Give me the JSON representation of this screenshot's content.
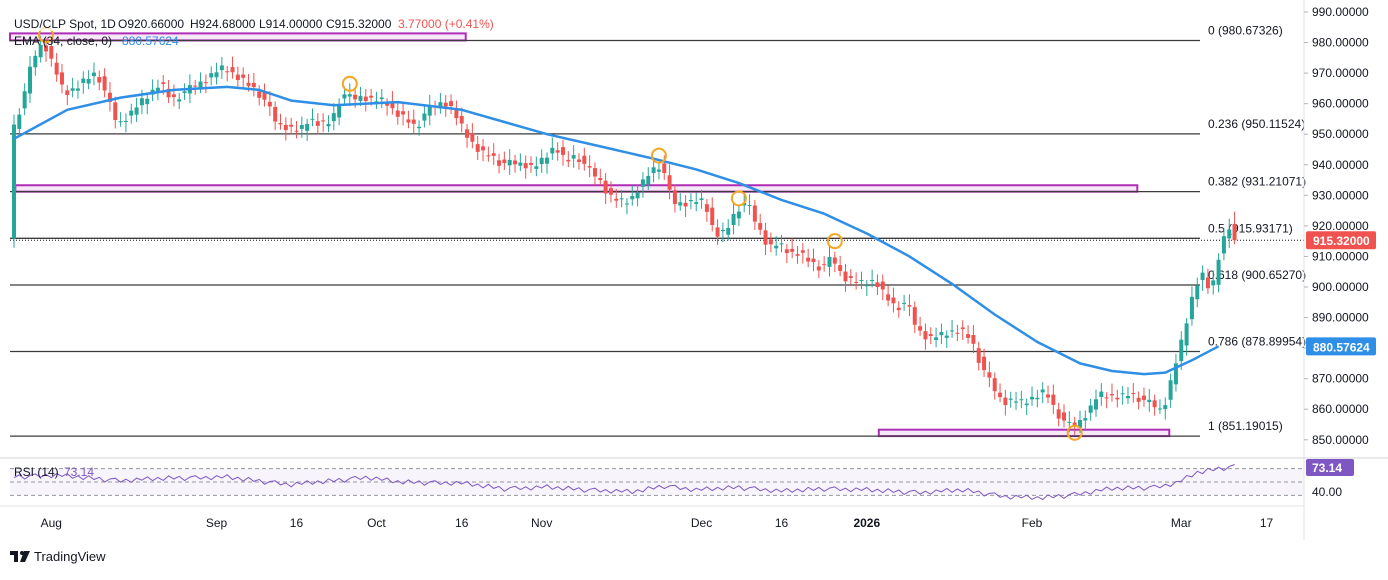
{
  "header": {
    "symbol": "USD/CLP Spot, 1D",
    "open": "O920.66000",
    "high": "H924.68000",
    "low": "L914.00000",
    "close": "C915.32000",
    "change": "3.77000 (+0.41%)",
    "ema_label": "EMA (34, close, 0)",
    "ema_value": "880.57624"
  },
  "rsi_pane": {
    "label": "RSI (14)",
    "value_text": "73.14",
    "badge": "73.14",
    "axis_label": "40.00"
  },
  "branding": {
    "logo_text": "TradingView"
  },
  "colors": {
    "up": "#26a69a",
    "down": "#ef5350",
    "ema": "#2f8ee5",
    "rsi": "#7e57c2",
    "fib_line": "#3b3b3b",
    "zone": "#b02cb6",
    "marker": "#f5a623",
    "price_badge": "#ef5350",
    "ema_badge": "#2f8ee5",
    "rsi_badge": "#7e57c2",
    "text": "#131722"
  },
  "chart_data": {
    "type": "candlestick",
    "title": "USD/CLP Spot, 1D",
    "ylim": [
      846,
      990
    ],
    "y_ticks": [
      "990.00000",
      "980.00000",
      "970.00000",
      "960.00000",
      "950.00000",
      "940.00000",
      "930.00000",
      "920.00000",
      "910.00000",
      "900.00000",
      "890.00000",
      "880.00000",
      "870.00000",
      "860.00000",
      "850.00000"
    ],
    "x_ticks": [
      {
        "label": "Aug",
        "day": 7
      },
      {
        "label": "Sep",
        "day": 38
      },
      {
        "label": "16",
        "day": 53
      },
      {
        "label": "Oct",
        "day": 68
      },
      {
        "label": "16",
        "day": 84
      },
      {
        "label": "Nov",
        "day": 99
      },
      {
        "label": "Dec",
        "day": 129
      },
      {
        "label": "16",
        "day": 144
      },
      {
        "label": "2026",
        "day": 160
      },
      {
        "label": "Feb",
        "day": 191
      },
      {
        "label": "Mar",
        "day": 219
      },
      {
        "label": "17",
        "day": 235
      }
    ],
    "fib_levels": [
      {
        "label": "0 (980.67326)",
        "value": 980.67326
      },
      {
        "label": "0.236 (950.11524)",
        "value": 950.11524
      },
      {
        "label": "0.382 (931.21071)",
        "value": 931.21071
      },
      {
        "label": "0.5 (915.93171)",
        "value": 915.93171
      },
      {
        "label": "0.618 (900.65270)",
        "value": 900.6527
      },
      {
        "label": "0.786 (878.89954)",
        "value": 878.89954
      },
      {
        "label": "1 (851.19015)",
        "value": 851.19015
      }
    ],
    "zones": [
      {
        "name": "resistance-zone-top",
        "start_day": 0,
        "end_day": 84,
        "low": 980.7,
        "high": 983.0
      },
      {
        "name": "resistance-zone-mid",
        "start_day": 1,
        "end_day": 210,
        "low": 931.2,
        "high": 933.3
      },
      {
        "name": "support-zone-bottom",
        "start_day": 163,
        "end_day": 216,
        "low": 851.2,
        "high": 853.3
      }
    ],
    "markers": [
      {
        "name": "swing-high-marker-1",
        "day": 6,
        "value": 982.5
      },
      {
        "name": "swing-high-marker-2",
        "day": 63,
        "value": 966.5
      },
      {
        "name": "swing-high-marker-3",
        "day": 121,
        "value": 943.0
      },
      {
        "name": "swing-high-marker-4",
        "day": 136,
        "value": 929.0
      },
      {
        "name": "swing-high-marker-5",
        "day": 154,
        "value": 915.0
      },
      {
        "name": "swing-low-marker-1",
        "day": 199,
        "value": 852.3
      }
    ],
    "last_price": {
      "label": "915.32000",
      "value": 915.32
    },
    "ema_last": {
      "label": "880.57624",
      "value": 880.57624
    },
    "ema_curve": [
      [
        0,
        948.5
      ],
      [
        10,
        958
      ],
      [
        20,
        962
      ],
      [
        30,
        964.5
      ],
      [
        40,
        965.5
      ],
      [
        46,
        964.5
      ],
      [
        52,
        961
      ],
      [
        60,
        959.5
      ],
      [
        72,
        960.5
      ],
      [
        84,
        958
      ],
      [
        92,
        954
      ],
      [
        100,
        950
      ],
      [
        110,
        946
      ],
      [
        120,
        942
      ],
      [
        128,
        938.5
      ],
      [
        136,
        934
      ],
      [
        144,
        928.5
      ],
      [
        152,
        924
      ],
      [
        160,
        917.5
      ],
      [
        168,
        910
      ],
      [
        176,
        901
      ],
      [
        184,
        891
      ],
      [
        192,
        882
      ],
      [
        200,
        875
      ],
      [
        206,
        872.5
      ],
      [
        212,
        871.5
      ],
      [
        216,
        872
      ],
      [
        221,
        876
      ],
      [
        226,
        880.6
      ]
    ],
    "candle_path": [
      [
        0,
        950
      ],
      [
        2,
        960
      ],
      [
        4,
        975
      ],
      [
        6,
        980
      ],
      [
        8,
        972
      ],
      [
        10,
        963
      ],
      [
        12,
        965
      ],
      [
        14,
        968
      ],
      [
        16,
        970
      ],
      [
        18,
        962
      ],
      [
        20,
        953
      ],
      [
        22,
        956
      ],
      [
        24,
        960
      ],
      [
        26,
        963
      ],
      [
        28,
        967
      ],
      [
        30,
        961
      ],
      [
        32,
        963
      ],
      [
        34,
        966
      ],
      [
        36,
        967
      ],
      [
        38,
        970
      ],
      [
        40,
        972
      ],
      [
        42,
        969
      ],
      [
        44,
        967
      ],
      [
        46,
        964
      ],
      [
        48,
        960
      ],
      [
        50,
        953
      ],
      [
        52,
        952
      ],
      [
        54,
        951
      ],
      [
        56,
        955
      ],
      [
        58,
        953
      ],
      [
        60,
        954
      ],
      [
        62,
        963
      ],
      [
        64,
        962
      ],
      [
        66,
        962
      ],
      [
        68,
        961
      ],
      [
        70,
        961
      ],
      [
        72,
        957
      ],
      [
        74,
        955
      ],
      [
        76,
        952
      ],
      [
        78,
        958
      ],
      [
        80,
        960
      ],
      [
        82,
        960
      ],
      [
        84,
        954
      ],
      [
        86,
        948
      ],
      [
        88,
        944
      ],
      [
        90,
        943
      ],
      [
        92,
        940
      ],
      [
        94,
        941
      ],
      [
        96,
        940
      ],
      [
        98,
        939
      ],
      [
        100,
        942
      ],
      [
        102,
        946
      ],
      [
        104,
        941
      ],
      [
        106,
        943
      ],
      [
        108,
        939
      ],
      [
        110,
        936
      ],
      [
        112,
        930
      ],
      [
        114,
        928
      ],
      [
        116,
        928
      ],
      [
        118,
        933
      ],
      [
        120,
        938
      ],
      [
        122,
        940
      ],
      [
        124,
        928
      ],
      [
        126,
        927
      ],
      [
        128,
        928
      ],
      [
        130,
        928
      ],
      [
        132,
        917
      ],
      [
        134,
        918
      ],
      [
        136,
        925
      ],
      [
        138,
        928
      ],
      [
        140,
        920
      ],
      [
        142,
        913
      ],
      [
        144,
        914
      ],
      [
        146,
        911
      ],
      [
        148,
        911
      ],
      [
        150,
        908
      ],
      [
        152,
        906
      ],
      [
        154,
        910
      ],
      [
        156,
        903
      ],
      [
        158,
        902
      ],
      [
        160,
        901
      ],
      [
        162,
        902
      ],
      [
        164,
        897
      ],
      [
        166,
        893
      ],
      [
        168,
        895
      ],
      [
        170,
        886
      ],
      [
        172,
        883
      ],
      [
        174,
        884
      ],
      [
        176,
        885
      ],
      [
        178,
        886
      ],
      [
        180,
        883
      ],
      [
        182,
        874
      ],
      [
        184,
        868
      ],
      [
        186,
        862
      ],
      [
        188,
        863
      ],
      [
        190,
        862
      ],
      [
        192,
        864
      ],
      [
        194,
        866
      ],
      [
        196,
        859
      ],
      [
        198,
        855
      ],
      [
        200,
        855
      ],
      [
        202,
        859
      ],
      [
        204,
        865
      ],
      [
        206,
        864
      ],
      [
        208,
        864
      ],
      [
        210,
        865
      ],
      [
        212,
        863
      ],
      [
        214,
        862
      ],
      [
        216,
        859
      ],
      [
        218,
        872
      ],
      [
        220,
        885
      ],
      [
        222,
        900
      ],
      [
        224,
        905
      ],
      [
        225,
        895
      ],
      [
        226,
        908
      ],
      [
        227,
        912
      ],
      [
        228,
        920.66
      ],
      [
        229,
        915.32
      ]
    ],
    "rsi_series": [
      [
        0,
        58
      ],
      [
        8,
        60
      ],
      [
        20,
        52
      ],
      [
        30,
        56
      ],
      [
        40,
        57
      ],
      [
        52,
        46
      ],
      [
        60,
        52
      ],
      [
        66,
        57
      ],
      [
        72,
        50
      ],
      [
        84,
        48
      ],
      [
        92,
        40
      ],
      [
        100,
        42
      ],
      [
        108,
        38
      ],
      [
        116,
        35
      ],
      [
        122,
        44
      ],
      [
        128,
        38
      ],
      [
        136,
        42
      ],
      [
        144,
        36
      ],
      [
        152,
        40
      ],
      [
        160,
        38
      ],
      [
        170,
        34
      ],
      [
        178,
        38
      ],
      [
        186,
        28
      ],
      [
        192,
        26
      ],
      [
        198,
        30
      ],
      [
        206,
        40
      ],
      [
        214,
        42
      ],
      [
        218,
        48
      ],
      [
        222,
        64
      ],
      [
        226,
        70
      ],
      [
        229,
        73.14
      ]
    ],
    "rsi_ylim": [
      20,
      80
    ],
    "rsi_guides": [
      70,
      50,
      30
    ]
  }
}
